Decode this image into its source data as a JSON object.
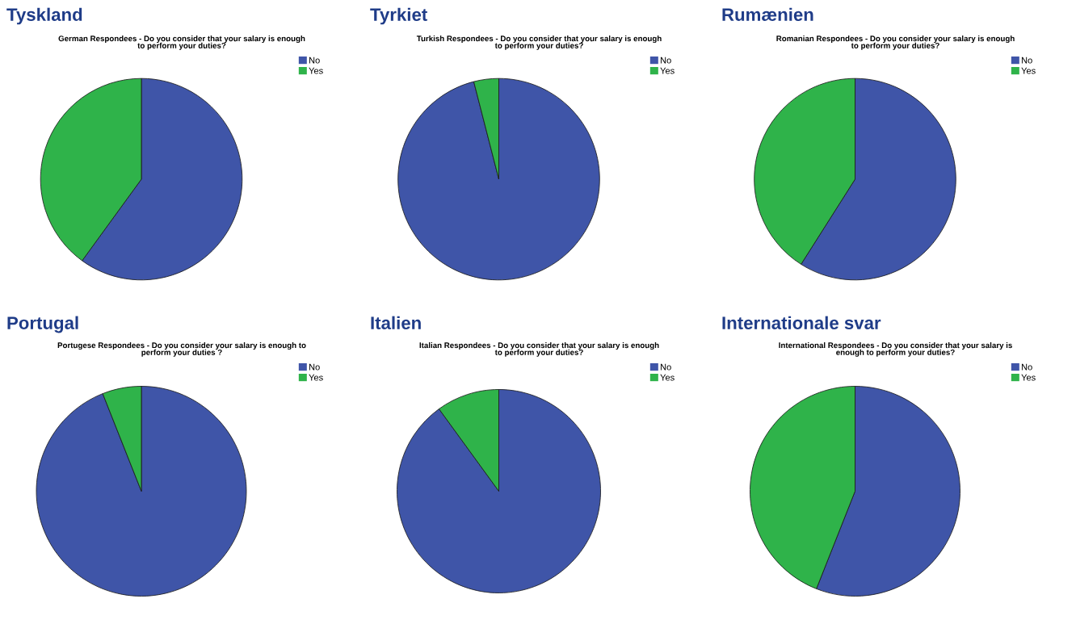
{
  "chart_data": [
    {
      "type": "pie",
      "title": "Tyskland",
      "subtitle": "German Respondees - Do you consider that your salary is enough\nto perform your duties?",
      "categories": [
        "No",
        "Yes"
      ],
      "values": [
        60,
        40
      ],
      "colors": [
        "#3f55a8",
        "#2fb34a"
      ],
      "legend": "top right"
    },
    {
      "type": "pie",
      "title": "Tyrkiet",
      "subtitle": "Turkish Respondees - Do you consider that your salary is enough\nto perform your duties?",
      "categories": [
        "No",
        "Yes"
      ],
      "values": [
        96,
        4
      ],
      "colors": [
        "#3f55a8",
        "#2fb34a"
      ],
      "legend": "top right"
    },
    {
      "type": "pie",
      "title": "Rumænien",
      "subtitle": "Romanian Respondees - Do you consider your salary is enough\nto perform your duties?",
      "categories": [
        "No",
        "Yes"
      ],
      "values": [
        59,
        41
      ],
      "colors": [
        "#3f55a8",
        "#2fb34a"
      ],
      "legend": "top right"
    },
    {
      "type": "pie",
      "title": "Portugal",
      "subtitle": "Portugese Respondees - Do you consider your salary is enough to\nperform your duties ?",
      "categories": [
        "No",
        "Yes"
      ],
      "values": [
        94,
        6
      ],
      "colors": [
        "#3f55a8",
        "#2fb34a"
      ],
      "legend": "top right"
    },
    {
      "type": "pie",
      "title": "Italien",
      "subtitle": "Italian Respondees - Do you consider that your salary is enough\nto perform your duties?",
      "categories": [
        "No",
        "Yes"
      ],
      "values": [
        90,
        10
      ],
      "colors": [
        "#3f55a8",
        "#2fb34a"
      ],
      "legend": "top right"
    },
    {
      "type": "pie",
      "title": "Internationale svar",
      "subtitle": "International Respondees - Do you consider that your salary is\nenough to perform your duties?",
      "categories": [
        "No",
        "Yes"
      ],
      "values": [
        56,
        44
      ],
      "colors": [
        "#3f55a8",
        "#2fb34a"
      ],
      "legend": "top right"
    }
  ]
}
